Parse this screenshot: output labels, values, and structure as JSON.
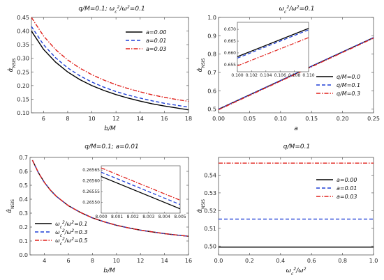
{
  "colors": {
    "black": "#000000",
    "blue": "#1f3fd6",
    "red": "#e0201b"
  },
  "chart_data": [
    {
      "type": "line",
      "title": "q/M=0.1;    ωc²/ω²=0.1",
      "xlabel": "b/M",
      "ylabel": "α̂NSIS",
      "xlim": [
        5,
        18
      ],
      "ylim": [
        0.1,
        0.45
      ],
      "xticks": [
        "6",
        "8",
        "10",
        "12",
        "14",
        "16",
        "18"
      ],
      "yticks": [
        "0.10",
        "0.15",
        "0.20",
        "0.25",
        "0.30",
        "0.35",
        "0.40",
        "0.45"
      ],
      "legend_position": "top-right",
      "series": [
        {
          "name": "a=0.00",
          "color": "black",
          "dash": "solid",
          "x": [
            5,
            6,
            7,
            8,
            9,
            10,
            11,
            12,
            13,
            14,
            15,
            16,
            17,
            18
          ],
          "y": [
            0.4,
            0.333,
            0.286,
            0.25,
            0.222,
            0.2,
            0.182,
            0.167,
            0.154,
            0.143,
            0.133,
            0.125,
            0.118,
            0.111
          ]
        },
        {
          "name": "a=0.01",
          "color": "blue",
          "dash": "dashed",
          "x": [
            5,
            6,
            7,
            8,
            9,
            10,
            11,
            12,
            13,
            14,
            15,
            16,
            17,
            18
          ],
          "y": [
            0.417,
            0.35,
            0.302,
            0.265,
            0.236,
            0.213,
            0.194,
            0.178,
            0.165,
            0.154,
            0.144,
            0.135,
            0.128,
            0.121
          ]
        },
        {
          "name": "a=0.03",
          "color": "red",
          "dash": "dashdot",
          "x": [
            5,
            6,
            7,
            8,
            9,
            10,
            11,
            12,
            13,
            14,
            15,
            16,
            17,
            18
          ],
          "y": [
            0.45,
            0.382,
            0.332,
            0.294,
            0.264,
            0.24,
            0.22,
            0.203,
            0.189,
            0.177,
            0.166,
            0.157,
            0.149,
            0.142
          ]
        }
      ]
    },
    {
      "type": "line",
      "title": "ωc²/ω²=0.1",
      "xlabel": "a",
      "ylabel": "α̂NSIS",
      "xlim": [
        0,
        0.25
      ],
      "ylim": [
        0.48,
        1.0
      ],
      "xticks": [
        "0.00",
        "0.05",
        "0.10",
        "0.15",
        "0.20",
        "0.25"
      ],
      "yticks": [
        "0.5",
        "0.6",
        "0.7",
        "0.8",
        "0.9",
        "1.0"
      ],
      "legend_position": "bottom-right",
      "series": [
        {
          "name": "q/M=0.0",
          "color": "black",
          "dash": "solid",
          "x": [
            0,
            0.25
          ],
          "y": [
            0.5,
            0.89
          ]
        },
        {
          "name": "q/M=0.1",
          "color": "blue",
          "dash": "dashed",
          "x": [
            0,
            0.25
          ],
          "y": [
            0.5,
            0.89
          ]
        },
        {
          "name": "q/M=0.3",
          "color": "red",
          "dash": "dashdot",
          "x": [
            0,
            0.25
          ],
          "y": [
            0.497,
            0.887
          ]
        }
      ],
      "inset": {
        "xlim": [
          0.1,
          0.11
        ],
        "ylim": [
          0.652,
          0.673
        ],
        "xticks": [
          "0.100",
          "0.102",
          "0.104",
          "0.106",
          "0.108",
          "0.110"
        ],
        "yticks": [
          "0.655",
          "0.660",
          "0.665",
          "0.670"
        ],
        "series": [
          {
            "color": "black",
            "dash": "solid",
            "x": [
              0.1,
              0.11
            ],
            "y": [
              0.6584,
              0.6704
            ]
          },
          {
            "color": "blue",
            "dash": "dashed",
            "x": [
              0.1,
              0.11
            ],
            "y": [
              0.6578,
              0.6698
            ]
          },
          {
            "color": "red",
            "dash": "dashdot",
            "x": [
              0.1,
              0.11
            ],
            "y": [
              0.6545,
              0.6665
            ]
          }
        ]
      }
    },
    {
      "type": "line",
      "title": "q/M=0.1;   a=0.01",
      "xlabel": "b/M",
      "ylabel": "α̂NSIS",
      "xlim": [
        2.8,
        16
      ],
      "ylim": [
        0,
        0.7
      ],
      "xticks": [
        "4",
        "6",
        "8",
        "10",
        "12",
        "14",
        "16"
      ],
      "yticks": [
        "0.0",
        "0.1",
        "0.2",
        "0.3",
        "0.4",
        "0.5",
        "0.6",
        "0.7"
      ],
      "legend_position": "bottom-left",
      "series": [
        {
          "name": "ωc²/ω²=0.1",
          "color": "black",
          "dash": "solid",
          "x": [
            3,
            3.5,
            4,
            4.5,
            5,
            6,
            7,
            8,
            9,
            10,
            11,
            12,
            13,
            14,
            15,
            16
          ],
          "y": [
            0.68,
            0.59,
            0.52,
            0.465,
            0.42,
            0.353,
            0.305,
            0.266,
            0.237,
            0.213,
            0.194,
            0.178,
            0.165,
            0.153,
            0.143,
            0.134
          ]
        },
        {
          "name": "ωc²/ω²=0.3",
          "color": "blue",
          "dash": "dashed",
          "x": [
            3,
            3.5,
            4,
            4.5,
            5,
            6,
            7,
            8,
            9,
            10,
            11,
            12,
            13,
            14,
            15,
            16
          ],
          "y": [
            0.68,
            0.59,
            0.52,
            0.465,
            0.42,
            0.353,
            0.305,
            0.266,
            0.237,
            0.213,
            0.194,
            0.178,
            0.165,
            0.153,
            0.143,
            0.134
          ]
        },
        {
          "name": "ωc²/ω²=0.5",
          "color": "red",
          "dash": "dashdot",
          "x": [
            3,
            3.5,
            4,
            4.5,
            5,
            6,
            7,
            8,
            9,
            10,
            11,
            12,
            13,
            14,
            15,
            16
          ],
          "y": [
            0.68,
            0.59,
            0.52,
            0.465,
            0.42,
            0.353,
            0.305,
            0.266,
            0.237,
            0.213,
            0.194,
            0.178,
            0.165,
            0.153,
            0.143,
            0.134
          ]
        }
      ],
      "inset": {
        "xlim": [
          8.0,
          8.005
        ],
        "ylim": [
          0.26545,
          0.26567
        ],
        "xticks": [
          "8.000",
          "8.001",
          "8.002",
          "8.003",
          "8.004",
          "8.005"
        ],
        "yticks": [
          "0.26550",
          "0.26555",
          "0.26560",
          "0.26565"
        ],
        "series": [
          {
            "color": "black",
            "dash": "solid",
            "x": [
              8.0,
              8.005
            ],
            "y": [
              0.26562,
              0.26547
            ]
          },
          {
            "color": "blue",
            "dash": "dashed",
            "x": [
              8.0,
              8.005
            ],
            "y": [
              0.26564,
              0.26549
            ]
          },
          {
            "color": "red",
            "dash": "dashdot",
            "x": [
              8.0,
              8.005
            ],
            "y": [
              0.26566,
              0.26551
            ]
          }
        ]
      }
    },
    {
      "type": "line",
      "title": "q/M=0.1",
      "xlabel": "ωc²/ω²",
      "ylabel": "α̂NSIS",
      "xlim": [
        0,
        1.0
      ],
      "ylim": [
        0.495,
        0.55
      ],
      "xticks": [
        "0.0",
        "0.2",
        "0.4",
        "0.6",
        "0.8",
        "1.0"
      ],
      "yticks": [
        "0.50",
        "0.51",
        "0.52",
        "0.53",
        "0.54"
      ],
      "legend_position": "top-right",
      "series": [
        {
          "name": "a=0.00",
          "color": "black",
          "dash": "solid",
          "x": [
            0,
            1.0
          ],
          "y": [
            0.4994,
            0.4994
          ]
        },
        {
          "name": "a=0.01",
          "color": "blue",
          "dash": "dashed",
          "x": [
            0,
            1.0
          ],
          "y": [
            0.5152,
            0.5152
          ]
        },
        {
          "name": "a=0.03",
          "color": "red",
          "dash": "dashdot",
          "x": [
            0,
            1.0
          ],
          "y": [
            0.5468,
            0.5468
          ]
        }
      ]
    }
  ]
}
